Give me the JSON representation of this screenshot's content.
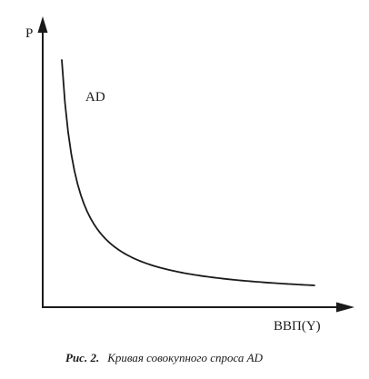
{
  "chart_data": {
    "type": "line",
    "title": "",
    "xlabel": "ВВП(Y)",
    "ylabel": "P",
    "ticks_shown": false,
    "grid": false,
    "series": [
      {
        "name": "AD",
        "shape": "downward-sloping convex curve"
      }
    ]
  },
  "caption": {
    "prefix": "Рис. 2.",
    "text": "Кривая совокупного спроса AD"
  },
  "colors": {
    "ink": "#1a1a1a",
    "background": "#ffffff"
  }
}
